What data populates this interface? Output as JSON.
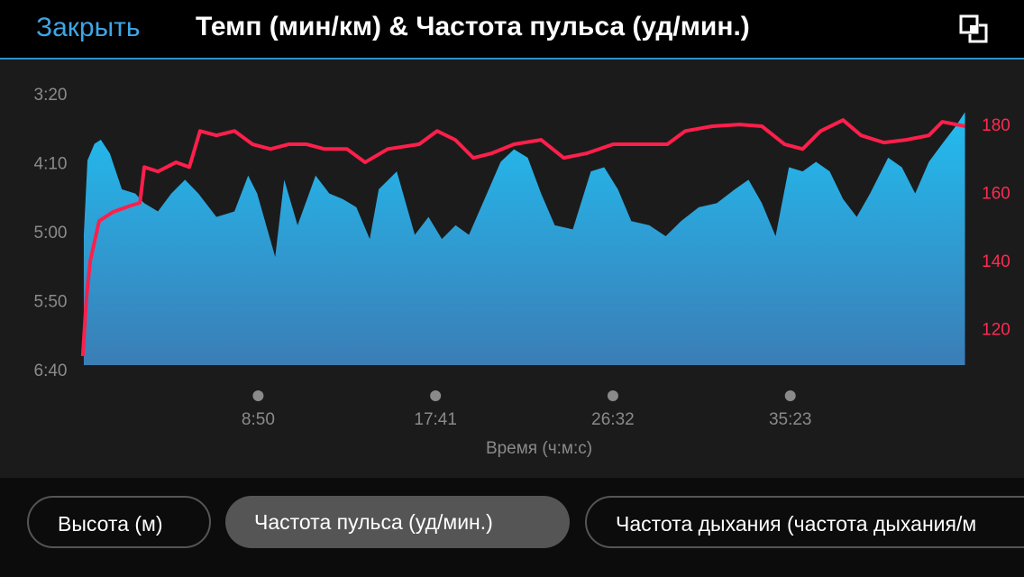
{
  "header": {
    "close": "Закрыть"
  },
  "chart_data": {
    "type": "area",
    "title": "Темп (мин/км) & Частота пульса (уд/мин.)",
    "x_label": "Время (ч:м:с)",
    "xlim": [
      0,
      2650
    ],
    "xticks": [
      {
        "value": 530,
        "label": "8:50"
      },
      {
        "value": 1061,
        "label": "17:41"
      },
      {
        "value": 1592,
        "label": "26:32"
      },
      {
        "value": 2123,
        "label": "35:23"
      }
    ],
    "ylim": [
      400,
      200
    ],
    "yticks": [
      {
        "value": 200,
        "label": "3:20"
      },
      {
        "value": 250,
        "label": "4:10"
      },
      {
        "value": 300,
        "label": "5:00"
      },
      {
        "value": 350,
        "label": "5:50"
      },
      {
        "value": 400,
        "label": "6:40"
      }
    ],
    "y2lim": [
      108,
      189
    ],
    "y2ticks": [
      120,
      140,
      160,
      180
    ],
    "y2_color": "#ff2a4f",
    "series": [
      {
        "type": "area",
        "color": "#22bdf0",
        "color2": "#3b7db6",
        "x": [
          8,
          19,
          40,
          59,
          86,
          122,
          162,
          189,
          230,
          270,
          311,
          351,
          405,
          459,
          500,
          527,
          554,
          581,
          608,
          648,
          702,
          743,
          783,
          824,
          864,
          891,
          945,
          999,
          1040,
          1080,
          1121,
          1161,
          1215,
          1256,
          1296,
          1337,
          1377,
          1418,
          1472,
          1526,
          1566,
          1607,
          1647,
          1701,
          1750,
          1796,
          1849,
          1903,
          1957,
          1998,
          2038,
          2079,
          2119,
          2160,
          2200,
          2241,
          2281,
          2322,
          2362,
          2416,
          2457,
          2497,
          2538,
          2578,
          2619,
          2646
        ],
        "values": [
          301,
          247,
          235,
          232,
          242,
          268,
          271,
          278,
          284,
          271,
          261,
          271,
          288,
          284,
          258,
          271,
          294,
          317,
          261,
          294,
          258,
          271,
          275,
          281,
          304,
          268,
          255,
          301,
          288,
          304,
          294,
          301,
          271,
          248,
          239,
          245,
          271,
          294,
          297,
          255,
          252,
          268,
          291,
          294,
          302,
          291,
          281,
          278,
          268,
          261,
          278,
          302,
          252,
          255,
          248,
          255,
          275,
          288,
          271,
          245,
          252,
          271,
          248,
          235,
          222,
          212
        ]
      },
      {
        "type": "line",
        "axis": "y2",
        "color": "#ff1f4b",
        "x": [
          5,
          16,
          27,
          54,
          95,
          149,
          176,
          189,
          230,
          284,
          324,
          356,
          405,
          459,
          513,
          567,
          621,
          675,
          729,
          796,
          850,
          918,
          1012,
          1066,
          1120,
          1174,
          1228,
          1296,
          1377,
          1445,
          1512,
          1593,
          1674,
          1755,
          1809,
          1890,
          1971,
          2038,
          2106,
          2160,
          2214,
          2281,
          2335,
          2403,
          2470,
          2538,
          2578,
          2646
        ],
        "values": [
          112.5,
          129.7,
          140.3,
          152.2,
          154.8,
          156.7,
          157.5,
          168,
          166.7,
          169.4,
          168,
          178.6,
          177.3,
          178.6,
          174.7,
          173.3,
          174.7,
          174.7,
          173.3,
          173.3,
          169.4,
          173.3,
          174.7,
          178.6,
          176,
          170.7,
          172,
          174.7,
          176,
          170.7,
          172,
          174.7,
          174.7,
          174.7,
          178.6,
          180,
          180.5,
          180,
          174.7,
          173.3,
          178.6,
          181.8,
          177.3,
          175.2,
          176,
          177.3,
          181.3,
          180
        ]
      }
    ]
  },
  "buttons": [
    "Высота (м)",
    "Частота пульса (уд/мин.)",
    "Частота дыхания (частота дыхания/м"
  ]
}
